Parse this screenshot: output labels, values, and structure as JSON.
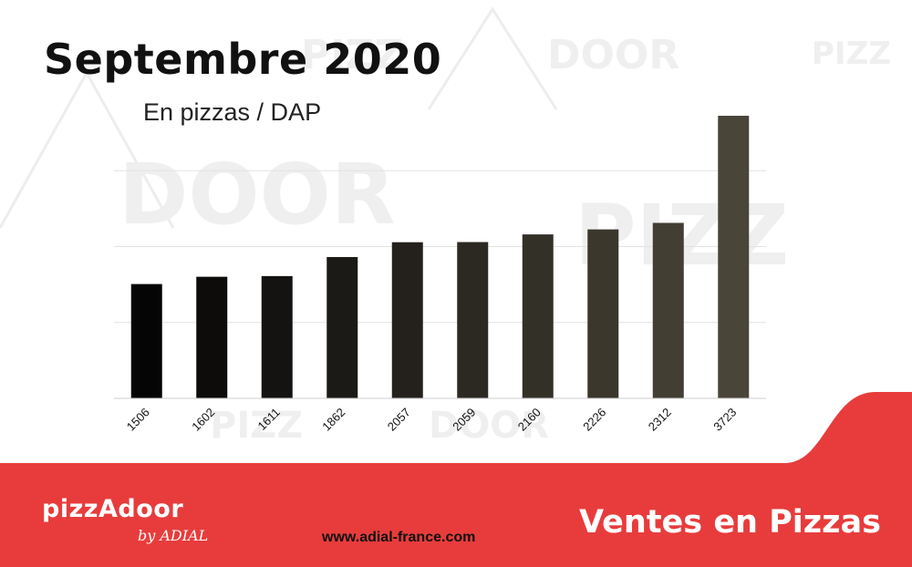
{
  "header": {
    "title": "Septembre 2020",
    "subtitle": "En pizzas / DAP"
  },
  "footer": {
    "logo_main": "pizzAdoor",
    "logo_sub": "by ADIAL",
    "url": "www.adial-france.com",
    "title": "Ventes en Pizzas"
  },
  "colors": {
    "accent": "#e83c3c",
    "bar_start": "#050505",
    "bar_end": "#4a4539",
    "text": "#111111"
  },
  "chart_data": {
    "type": "bar",
    "title": "Septembre 2020",
    "subtitle": "En pizzas / DAP",
    "categories": [
      "1506",
      "1602",
      "1611",
      "1862",
      "2057",
      "2059",
      "2160",
      "2226",
      "2312",
      "3723"
    ],
    "values": [
      1506,
      1602,
      1611,
      1862,
      2057,
      2059,
      2160,
      2226,
      2312,
      3723
    ],
    "ylim": [
      0,
      3723
    ],
    "grid": true,
    "legend": "none"
  }
}
